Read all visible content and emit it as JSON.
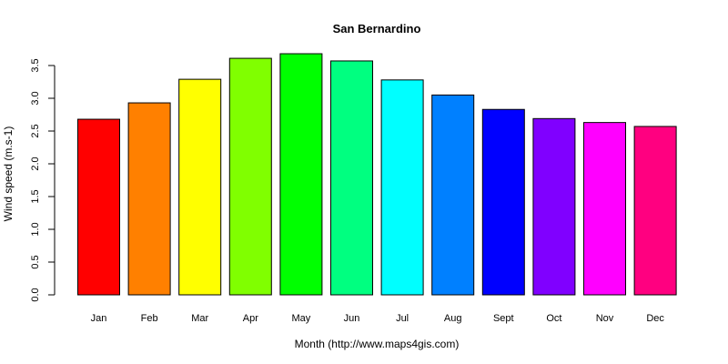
{
  "chart_data": {
    "type": "bar",
    "title": "San Bernardino",
    "xlabel": "Month (http://www.maps4gis.com)",
    "ylabel": "Wind speed (m.s-1)",
    "categories": [
      "Jan",
      "Feb",
      "Mar",
      "Apr",
      "May",
      "Jun",
      "Jul",
      "Aug",
      "Sept",
      "Oct",
      "Nov",
      "Dec"
    ],
    "values": [
      2.68,
      2.93,
      3.29,
      3.61,
      3.68,
      3.57,
      3.28,
      3.05,
      2.83,
      2.69,
      2.63,
      2.57
    ],
    "colors": [
      "#FF0000",
      "#FF8000",
      "#FFFF00",
      "#80FF00",
      "#00FF00",
      "#00FF80",
      "#00FFFF",
      "#0080FF",
      "#0000FF",
      "#8000FF",
      "#FF00FF",
      "#FF0080"
    ],
    "ylim": [
      0,
      3.5
    ],
    "yticks": [
      "0.0",
      "0.5",
      "1.0",
      "1.5",
      "2.0",
      "2.5",
      "3.0",
      "3.5"
    ],
    "grid": false,
    "legend": "none"
  }
}
